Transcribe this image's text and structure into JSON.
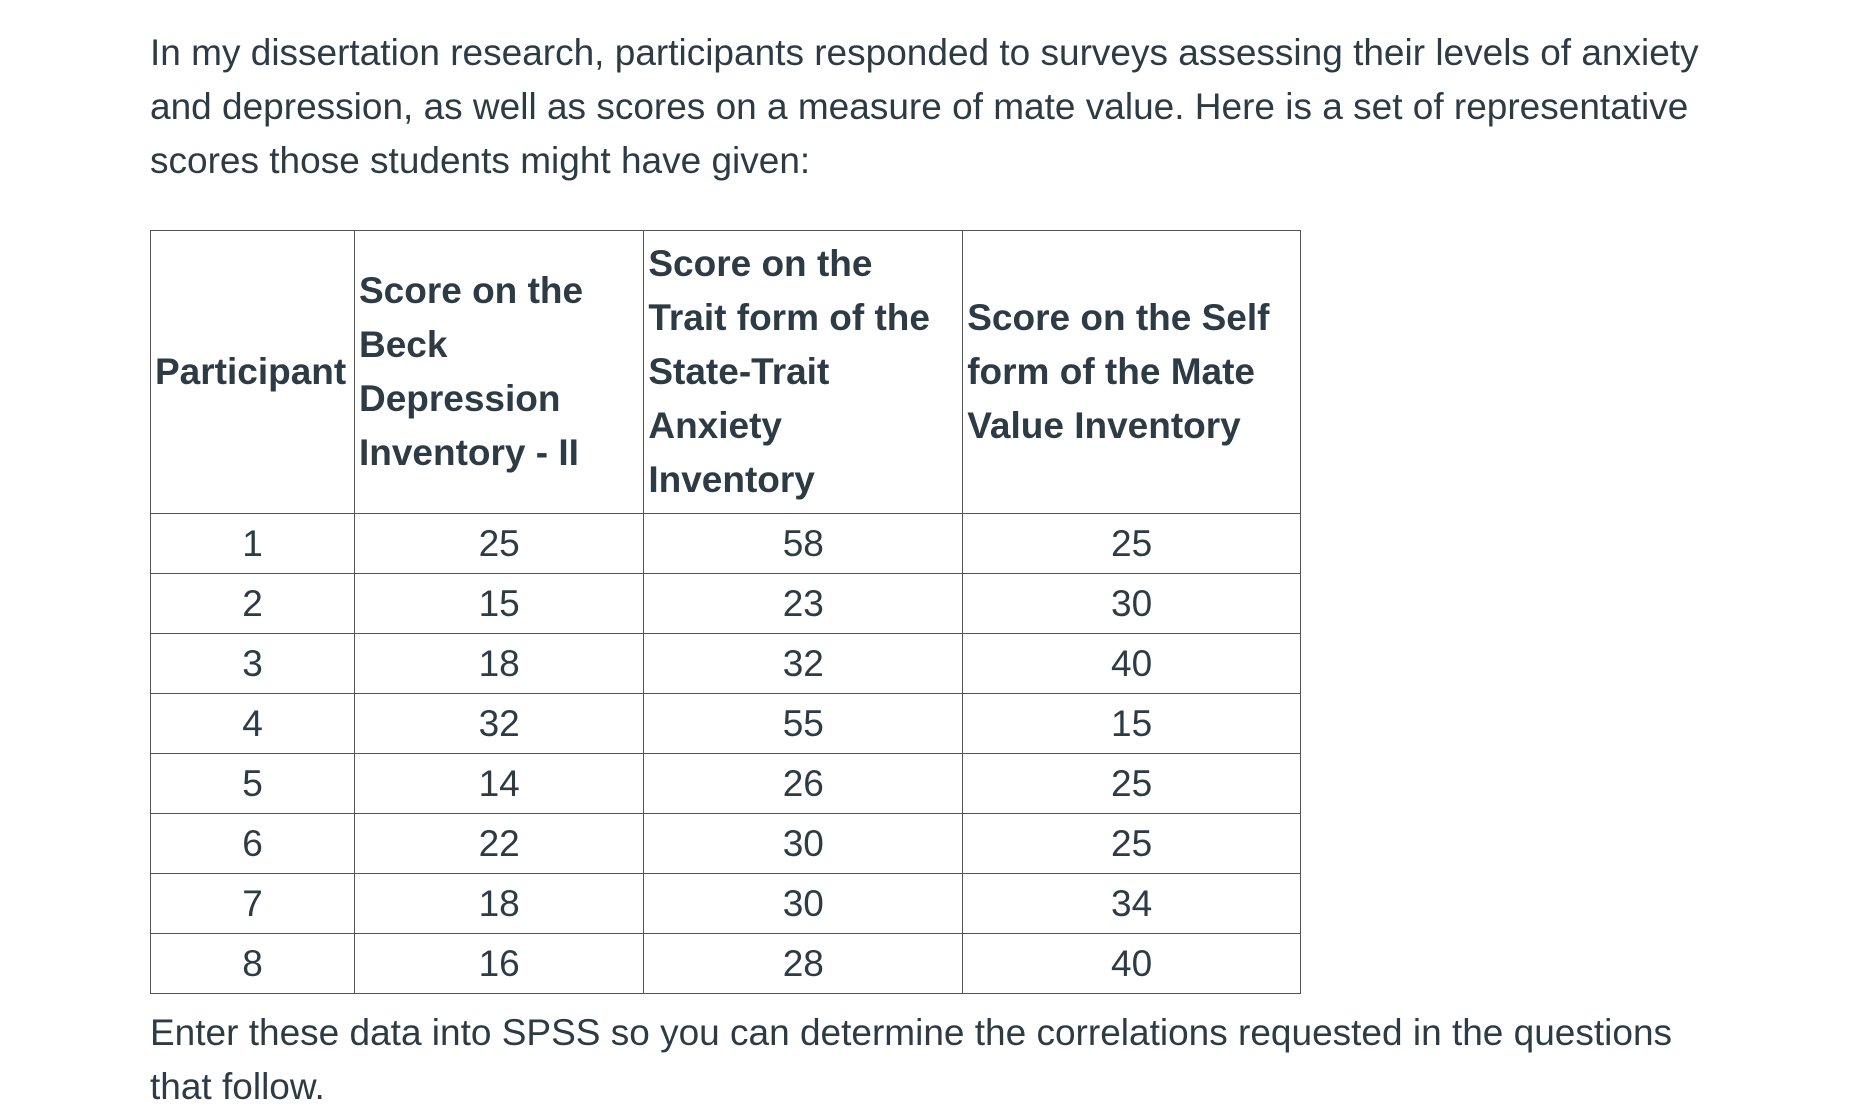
{
  "intro": "In my dissertation research, participants responded to surveys assessing their levels of anxiety and depression, as well as scores on a measure of mate value. Here is a set of representative scores those students might have given:",
  "table": {
    "headers": [
      "Participant",
      "Score on the Beck Depression Inventory - II",
      "Score on the Trait form of the State-Trait Anxiety Inventory",
      "Score on the Self form of the Mate Value Inventory"
    ],
    "rows": [
      [
        "1",
        "25",
        "58",
        "25"
      ],
      [
        "2",
        "15",
        "23",
        "30"
      ],
      [
        "3",
        "18",
        "32",
        "40"
      ],
      [
        "4",
        "32",
        "55",
        "15"
      ],
      [
        "5",
        "14",
        "26",
        "25"
      ],
      [
        "6",
        "22",
        "30",
        "25"
      ],
      [
        "7",
        "18",
        "30",
        "34"
      ],
      [
        "8",
        "16",
        "28",
        "40"
      ]
    ]
  },
  "outro": "Enter these data into SPSS so you can determine the correlations requested in the questions that follow."
}
